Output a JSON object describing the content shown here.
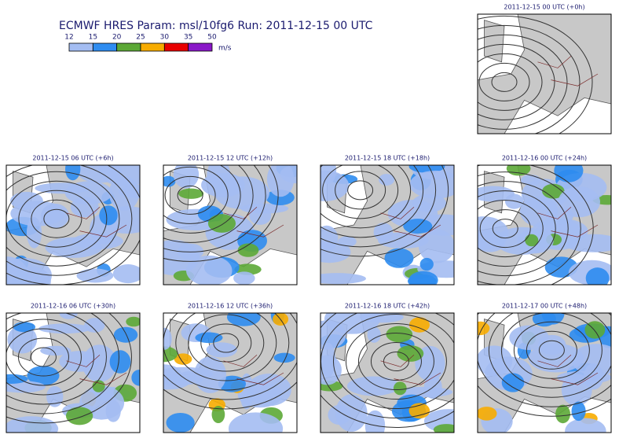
{
  "header": {
    "title": "ECMWF HRES Param: msl/10fg6 Run: 2011-12-15 00 UTC"
  },
  "legend": {
    "ticks": [
      12,
      15,
      20,
      25,
      30,
      35,
      50
    ],
    "colors": [
      "#a4bdf2",
      "#2e8cf0",
      "#5ca836",
      "#f7ac00",
      "#e80000",
      "#8a18c8"
    ],
    "unit": "m/s"
  },
  "panels": [
    {
      "label": "2011-12-15 00 UTC (+0h)"
    },
    {
      "label": "2011-12-15 06 UTC (+6h)"
    },
    {
      "label": "2011-12-15 12 UTC (+12h)"
    },
    {
      "label": "2011-12-15 18 UTC (+18h)"
    },
    {
      "label": "2011-12-16 00 UTC (+24h)"
    },
    {
      "label": "2011-12-16 06 UTC (+30h)"
    },
    {
      "label": "2011-12-16 12 UTC (+36h)"
    },
    {
      "label": "2011-12-16 18 UTC (+42h)"
    },
    {
      "label": "2011-12-17 00 UTC (+48h)"
    }
  ]
}
